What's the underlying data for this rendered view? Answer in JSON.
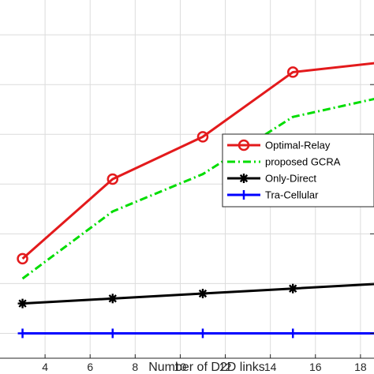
{
  "chart_data": {
    "type": "line",
    "xlabel": "Number of D2D links",
    "ylabel": "",
    "title": "",
    "xlim": [
      2,
      18.6
    ],
    "ylim": [
      0.5,
      7.7
    ],
    "xticks": [
      4,
      6,
      8,
      10,
      12,
      14,
      16,
      18
    ],
    "xtick_labels": [
      "4",
      "6",
      "8",
      "10",
      "12",
      "14",
      "16",
      "18"
    ],
    "yticks": [
      1,
      2,
      3,
      4,
      5,
      6,
      7
    ],
    "grid": true,
    "legend_position": "center-right",
    "series": [
      {
        "name": "Optimal-Relay",
        "color": "#e31a1c",
        "linestyle": "solid",
        "marker": "circle",
        "x": [
          3,
          7,
          11,
          15,
          19
        ],
        "y": [
          2.5,
          4.1,
          4.95,
          6.25,
          6.45
        ]
      },
      {
        "name": "proposed GCRA",
        "color": "#00dd00",
        "linestyle": "dashdot",
        "marker": "none",
        "x": [
          3,
          7,
          11,
          15,
          19
        ],
        "y": [
          2.1,
          3.45,
          4.2,
          5.35,
          5.75
        ]
      },
      {
        "name": "Only-Direct",
        "color": "#000000",
        "linestyle": "solid",
        "marker": "asterisk",
        "x": [
          3,
          7,
          11,
          15,
          19
        ],
        "y": [
          1.6,
          1.7,
          1.8,
          1.9,
          2.0
        ]
      },
      {
        "name": "Tra-Cellular",
        "color": "#0000ff",
        "linestyle": "solid",
        "marker": "plus",
        "x": [
          3,
          7,
          11,
          15,
          19
        ],
        "y": [
          1.0,
          1.0,
          1.0,
          1.0,
          1.0
        ]
      }
    ]
  }
}
